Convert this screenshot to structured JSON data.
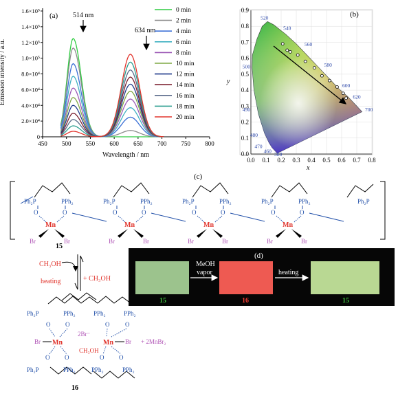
{
  "chart_data": [
    {
      "type": "line",
      "panel_label": "(a)",
      "xlabel": "Wavelength / nm",
      "ylabel": "Emission intensity / a.u.",
      "xlim": [
        450,
        800
      ],
      "ylim": [
        0,
        160000
      ],
      "x_ticks": [
        "450",
        "500",
        "550",
        "600",
        "650",
        "700",
        "750",
        "800"
      ],
      "y_ticks": [
        "0",
        "2.0×10⁴",
        "4.0×10⁴",
        "6.0×10⁴",
        "8.0×10⁴",
        "1.0×10⁵",
        "1.2×10⁵",
        "1.4×10⁵",
        "1.6×10⁵"
      ],
      "annotations": [
        "514 nm",
        "634 nm"
      ],
      "legend_position": "right",
      "series": [
        {
          "name": "0 min",
          "color": "#2ecc40",
          "peak1": 125000,
          "peak2": 0
        },
        {
          "name": "2 min",
          "color": "#8a8a8a",
          "peak1": 113000,
          "peak2": 8000
        },
        {
          "name": "4 min",
          "color": "#3a6fd6",
          "peak1": 93000,
          "peak2": 25000
        },
        {
          "name": "6 min",
          "color": "#3fb0c2",
          "peak1": 77000,
          "peak2": 37000
        },
        {
          "name": "8 min",
          "color": "#9b59b6",
          "peak1": 62000,
          "peak2": 48000
        },
        {
          "name": "10 min",
          "color": "#7fa844",
          "peak1": 50000,
          "peak2": 58000
        },
        {
          "name": "12 min",
          "color": "#1f3a8a",
          "peak1": 40000,
          "peak2": 67000
        },
        {
          "name": "14 min",
          "color": "#7a1e2e",
          "peak1": 30000,
          "peak2": 76000
        },
        {
          "name": "16 min",
          "color": "#5a6b8a",
          "peak1": 22000,
          "peak2": 85000
        },
        {
          "name": "18 min",
          "color": "#2a9d8f",
          "peak1": 14000,
          "peak2": 95000
        },
        {
          "name": "20 min",
          "color": "#e2332b",
          "peak1": 7000,
          "peak2": 105000
        }
      ]
    },
    {
      "type": "scatter",
      "panel_label": "(b)",
      "xlabel": "x",
      "ylabel": "y",
      "xlim": [
        0,
        0.8
      ],
      "ylim": [
        0,
        0.9
      ],
      "x_ticks": [
        "0.0",
        "0.1",
        "0.2",
        "0.3",
        "0.4",
        "0.5",
        "0.6",
        "0.7",
        "0.8"
      ],
      "y_ticks": [
        "0.0",
        "0.1",
        "0.2",
        "0.3",
        "0.4",
        "0.5",
        "0.6",
        "0.7",
        "0.8",
        "0.9"
      ],
      "wavelength_labels": [
        "520",
        "540",
        "560",
        "580",
        "600",
        "620",
        "700",
        "500",
        "490",
        "480",
        "470",
        "460",
        "380"
      ],
      "points_x": [
        0.21,
        0.24,
        0.26,
        0.31,
        0.36,
        0.42,
        0.47,
        0.52,
        0.57,
        0.61,
        0.63
      ],
      "points_y": [
        0.69,
        0.65,
        0.64,
        0.62,
        0.58,
        0.54,
        0.49,
        0.46,
        0.42,
        0.38,
        0.35
      ]
    }
  ],
  "scheme": {
    "panel_c": "(c)",
    "panel_d": "(d)",
    "compound_15": "15",
    "compound_16": "16",
    "mn": "Mn",
    "br": "Br",
    "ph2p": "Ph₂P",
    "pph2": "PPh₂",
    "o": "O",
    "ch3oh": "CH₃OH",
    "plus_ch3oh": "+ CH₃OH",
    "heating": "heating",
    "two_br_minus": "2Br⁻",
    "plus_2mnbr2": "+ 2MnBr₂",
    "meoh": "MeOH",
    "vapor": "vapor",
    "photo_labels": [
      "15",
      "16",
      "15"
    ],
    "photo_colors": [
      "#9cc38d",
      "#ee5a52",
      "#b9d893"
    ]
  }
}
